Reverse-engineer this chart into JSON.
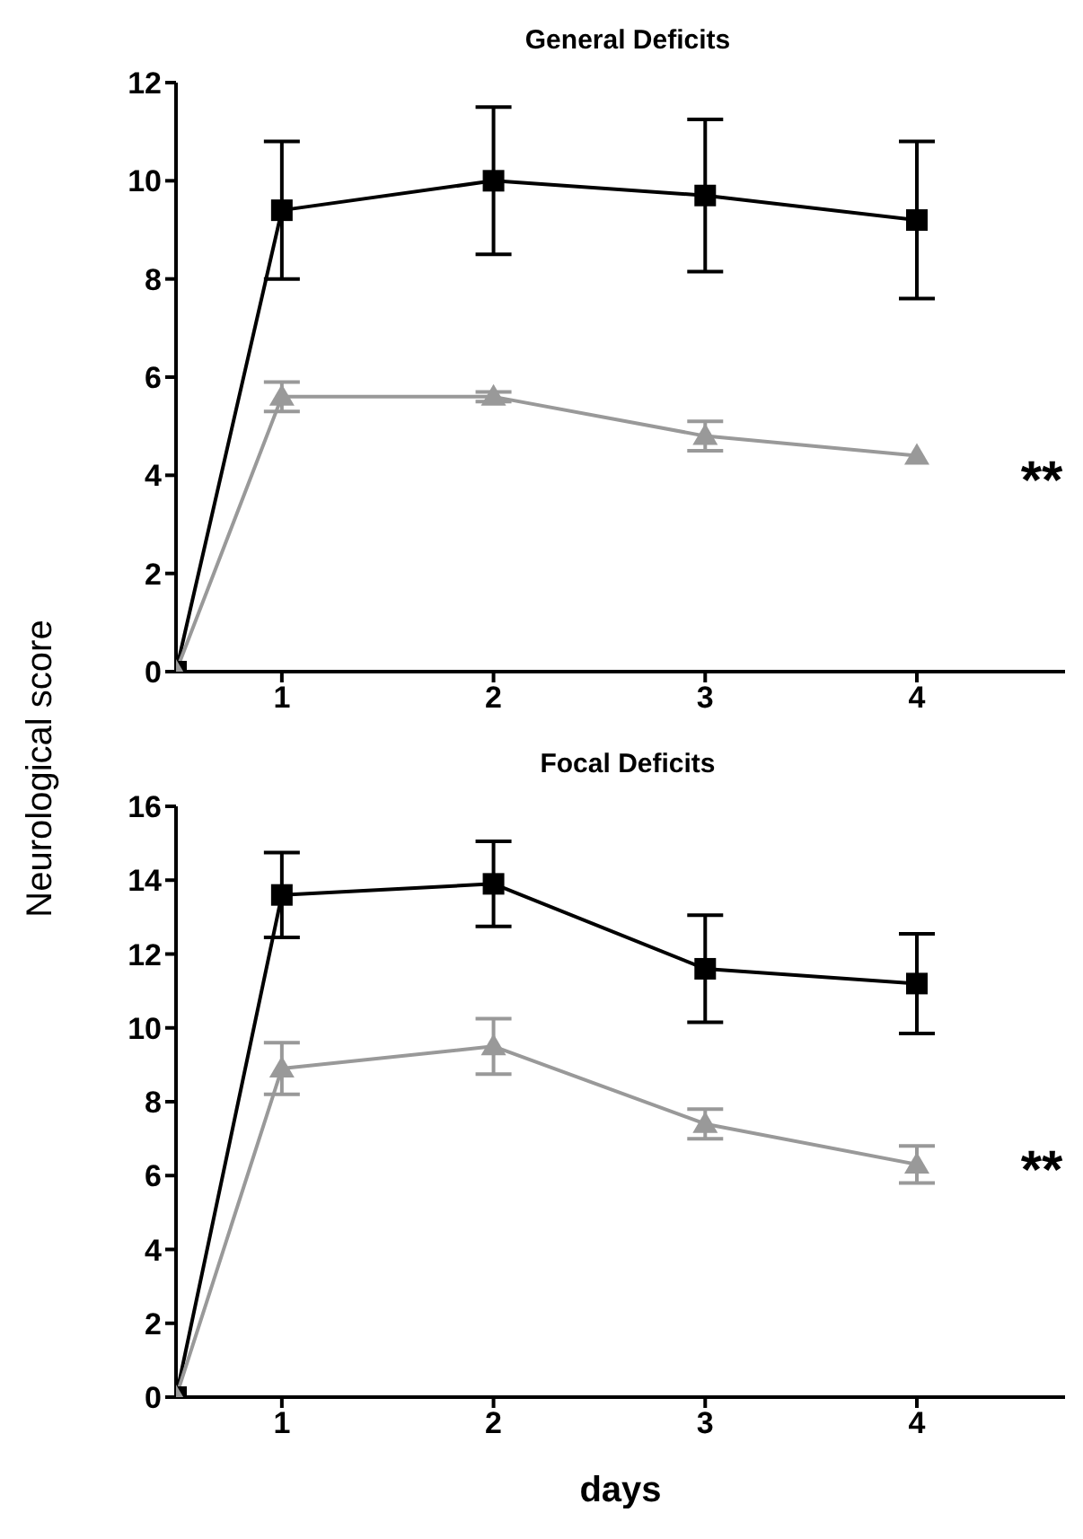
{
  "chart_data": [
    {
      "type": "line",
      "title": "General Deficits",
      "ylabel": "Neurological score",
      "x": [
        0.5,
        1,
        2,
        3,
        4
      ],
      "xlim": [
        0.5,
        4.7
      ],
      "xticks": [
        1,
        2,
        3,
        4
      ],
      "ylim": [
        0,
        12
      ],
      "yticks": [
        0,
        2,
        4,
        6,
        8,
        10,
        12
      ],
      "grid": false,
      "legend": false,
      "series": [
        {
          "color": "#000000",
          "marker": "square",
          "values": [
            0,
            9.4,
            10.0,
            9.7,
            9.2
          ],
          "errors": [
            null,
            1.4,
            1.5,
            1.55,
            1.6
          ]
        },
        {
          "color": "#999999",
          "marker": "triangle",
          "values": [
            0,
            5.6,
            5.6,
            4.8,
            4.4
          ],
          "errors": [
            null,
            0.3,
            0.1,
            0.3,
            null
          ]
        }
      ],
      "annotations": [
        "**"
      ]
    },
    {
      "type": "line",
      "title": "Focal Deficits",
      "xlabel": "days",
      "x": [
        0.5,
        1,
        2,
        3,
        4
      ],
      "xlim": [
        0.5,
        4.7
      ],
      "xticks": [
        1,
        2,
        3,
        4
      ],
      "ylim": [
        0,
        16
      ],
      "yticks": [
        0,
        2,
        4,
        6,
        8,
        10,
        12,
        14,
        16
      ],
      "grid": false,
      "legend": false,
      "series": [
        {
          "color": "#000000",
          "marker": "square",
          "values": [
            0,
            13.6,
            13.9,
            11.6,
            11.2
          ],
          "errors": [
            null,
            1.15,
            1.15,
            1.45,
            1.35
          ]
        },
        {
          "color": "#999999",
          "marker": "triangle",
          "values": [
            0,
            8.9,
            9.5,
            7.4,
            6.3
          ],
          "errors": [
            null,
            0.7,
            0.75,
            0.4,
            0.5
          ]
        }
      ],
      "annotations": [
        "**"
      ]
    }
  ]
}
